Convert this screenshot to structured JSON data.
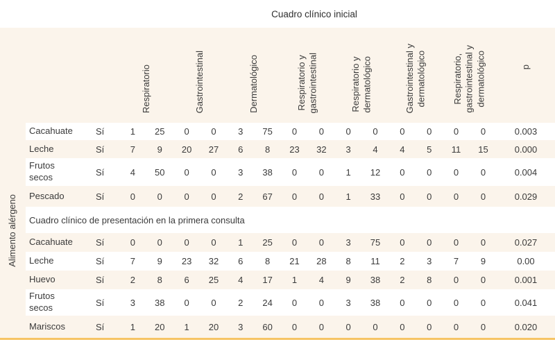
{
  "title": "Cuadro clínico inicial",
  "left_axis_label": "Alimento alérgeno",
  "columns": [
    "Respiratorio",
    "Gastrointestinal",
    "Dermatológico",
    "Respiratorio y\ngastrointestinal",
    "Respiratorio y\ndermatológico",
    "Gastrointestinal y\ndermatológico",
    "Respiratorio,\ngastrointestinal y\ndermatológico",
    "p"
  ],
  "sections": [
    {
      "rows": [
        {
          "food": "Cacahuate",
          "si": "Sí",
          "values": [
            1,
            25,
            0,
            0,
            3,
            75,
            0,
            0,
            0,
            0,
            0,
            0,
            0,
            0
          ],
          "p": "0.003"
        },
        {
          "food": "Leche",
          "si": "Sí",
          "values": [
            7,
            9,
            20,
            27,
            6,
            8,
            23,
            32,
            3,
            4,
            4,
            5,
            11,
            15
          ],
          "p": "0.000"
        },
        {
          "food": "Frutos secos",
          "si": "Sí",
          "values": [
            4,
            50,
            0,
            0,
            3,
            38,
            0,
            0,
            1,
            12,
            0,
            0,
            0,
            0
          ],
          "p": "0.004"
        },
        {
          "food": "Pescado",
          "si": "Sí",
          "values": [
            0,
            0,
            0,
            0,
            2,
            67,
            0,
            0,
            1,
            33,
            0,
            0,
            0,
            0
          ],
          "p": "0.029"
        }
      ]
    },
    {
      "header": "Cuadro clínico de presentación en la primera consulta",
      "rows": [
        {
          "food": "Cacahuate",
          "si": "Sí",
          "values": [
            0,
            0,
            0,
            0,
            1,
            25,
            0,
            0,
            3,
            75,
            0,
            0,
            0,
            0
          ],
          "p": "0.027"
        },
        {
          "food": "Leche",
          "si": "Sí",
          "values": [
            7,
            9,
            23,
            32,
            6,
            8,
            21,
            28,
            8,
            11,
            2,
            3,
            7,
            9
          ],
          "p": "0.00"
        },
        {
          "food": "Huevo",
          "si": "Sí",
          "values": [
            2,
            8,
            6,
            25,
            4,
            17,
            1,
            4,
            9,
            38,
            2,
            8,
            0,
            0
          ],
          "p": "0.001"
        },
        {
          "food": "Frutos secos",
          "si": "Sí",
          "values": [
            3,
            38,
            0,
            0,
            2,
            24,
            0,
            0,
            3,
            38,
            0,
            0,
            0,
            0
          ],
          "p": "0.041"
        },
        {
          "food": "Mariscos",
          "si": "Sí",
          "values": [
            1,
            20,
            1,
            20,
            3,
            60,
            0,
            0,
            0,
            0,
            0,
            0,
            0,
            0
          ],
          "p": "0.020"
        }
      ]
    }
  ],
  "colors": {
    "stripe_cream": "#fbf4eb",
    "bottom_border": "#f6c465",
    "text": "#3a3a3a"
  }
}
